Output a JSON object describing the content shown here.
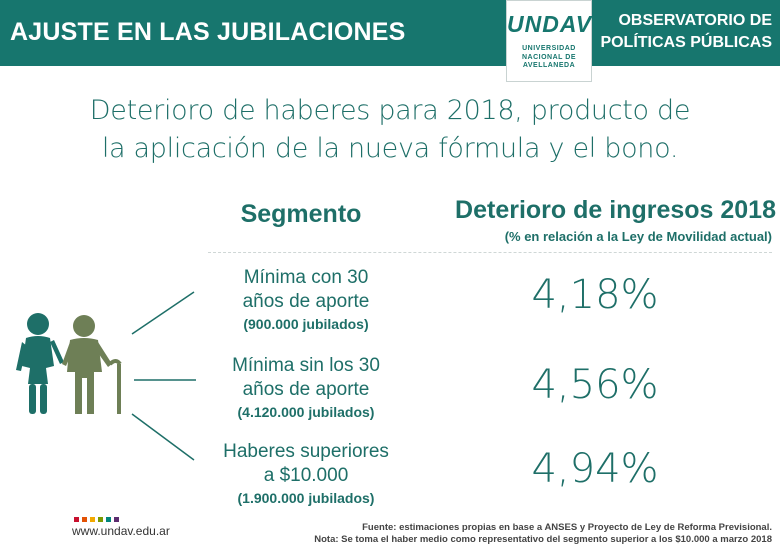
{
  "header": {
    "title": "AJUSTE EN LAS JUBILACIONES",
    "logo_word": "UNDAV",
    "logo_sub": [
      "UNIVERSIDAD",
      "NACIONAL DE",
      "AVELLANEDA"
    ],
    "right_line1": "OBSERVATORIO DE",
    "right_line2": "POLÍTICAS PÚBLICAS",
    "bg_color": "#17766e"
  },
  "main_title": {
    "line1": "Deterioro de haberes para 2018, producto de",
    "line2": "la aplicación de la nueva fórmula y el bono."
  },
  "columns": {
    "segment": "Segmento",
    "deterioro": "Deterioro de ingresos 2018",
    "deterioro_sub": "(% en relación a la Ley de Movilidad actual)"
  },
  "rows": [
    {
      "line1": "Mínima con 30",
      "line2": "años de aporte",
      "count": "(900.000 jubilados)",
      "value": "4,18%"
    },
    {
      "line1": "Mínima sin los 30",
      "line2": "años de aporte",
      "count": "(4.120.000 jubilados)",
      "value": "4,56%"
    },
    {
      "line1": "Haberes superiores",
      "line2": "a $10.000",
      "count": "(1.900.000 jubilados)",
      "value": "4,94%"
    }
  ],
  "icon": "elderly-couple-icon",
  "footer": {
    "site": "www.undav.edu.ar",
    "dot_colors": [
      "#c8102e",
      "#e35205",
      "#f2a900",
      "#7a9a01",
      "#00857c",
      "#5b2c6f"
    ],
    "source_line1": "Fuente: estimaciones propias en base a ANSES y Proyecto de Ley de Reforma Previsional.",
    "source_line2": "Nota: Se toma el haber medio como representativo del segmento superior a los $10.000 a marzo 2018"
  }
}
